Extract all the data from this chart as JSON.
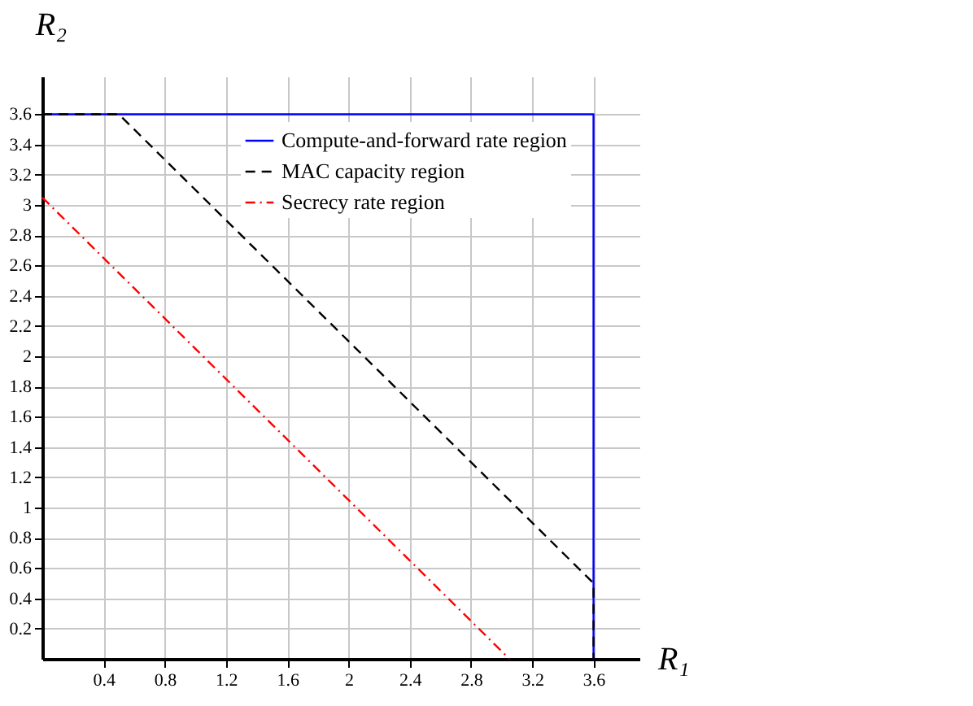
{
  "chart_data": {
    "type": "line",
    "xlabel": "R₁",
    "ylabel": "R₂",
    "xlim": [
      0,
      3.9
    ],
    "ylim": [
      0,
      3.85
    ],
    "xticks": [
      0.4,
      0.8,
      1.2,
      1.6,
      2,
      2.4,
      2.8,
      3.2,
      3.6
    ],
    "yticks": [
      0.2,
      0.4,
      0.6,
      0.8,
      1,
      1.2,
      1.4,
      1.6,
      1.8,
      2,
      2.2,
      2.4,
      2.6,
      2.8,
      3,
      3.2,
      3.4,
      3.6
    ],
    "grid": true,
    "legend": "top right",
    "marker": "none",
    "series": [
      {
        "name": "Compute-and-forward rate region",
        "color": "#0000ff",
        "line_style": "solid",
        "x": [
          0,
          3.6,
          3.6
        ],
        "values": [
          3.6,
          3.6,
          0
        ]
      },
      {
        "name": "MAC capacity region",
        "color": "#000000",
        "line_style": "dashed",
        "x": [
          0,
          0.5,
          3.6,
          3.6
        ],
        "values": [
          3.6,
          3.6,
          0.5,
          0
        ]
      },
      {
        "name": "Secrecy rate region",
        "color": "#ff0000",
        "line_style": "dashdot",
        "x": [
          0,
          3.05
        ],
        "values": [
          3.05,
          0
        ]
      }
    ]
  }
}
